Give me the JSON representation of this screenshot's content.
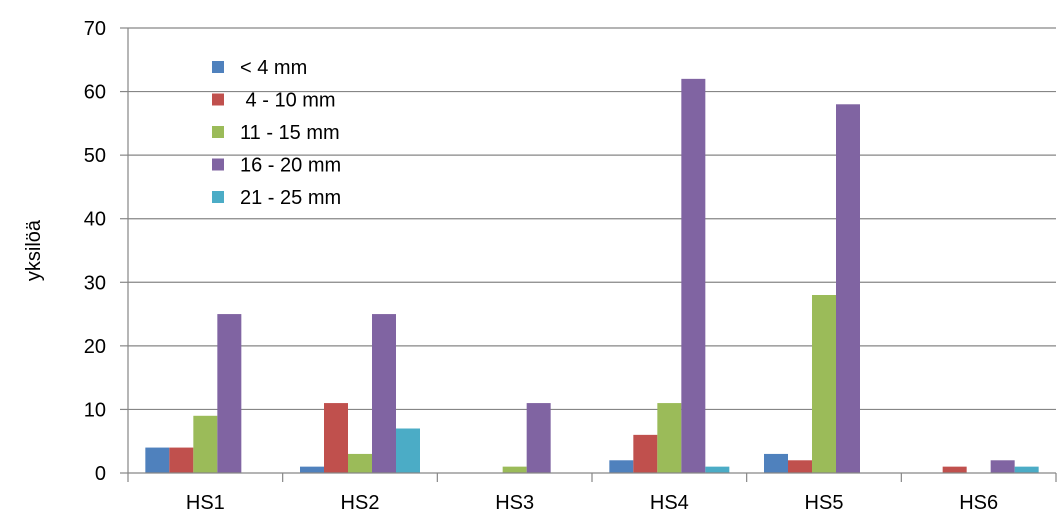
{
  "chart_data": {
    "type": "bar",
    "title": "",
    "xlabel": "",
    "ylabel": "yksilöä",
    "ylim": [
      0,
      70
    ],
    "yticks": [
      0,
      10,
      20,
      30,
      40,
      50,
      60,
      70
    ],
    "grid": "horizontal",
    "legend_position": "top-left",
    "categories": [
      "HS1",
      "HS2",
      "HS3",
      "HS4",
      "HS5",
      "HS6"
    ],
    "series": [
      {
        "name": "< 4 mm",
        "color": "#4F81BD",
        "values": [
          4,
          1,
          0,
          2,
          3,
          0
        ]
      },
      {
        "name": " 4 - 10 mm",
        "color": "#C0504D",
        "values": [
          4,
          11,
          0,
          6,
          2,
          1
        ]
      },
      {
        "name": "11 - 15 mm",
        "color": "#9BBB59",
        "values": [
          9,
          3,
          1,
          11,
          28,
          0
        ]
      },
      {
        "name": "16 - 20 mm",
        "color": "#8064A2",
        "values": [
          25,
          25,
          11,
          62,
          58,
          2
        ]
      },
      {
        "name": "21 - 25 mm",
        "color": "#4BACC6",
        "values": [
          0,
          7,
          0,
          1,
          0,
          1
        ]
      }
    ]
  }
}
